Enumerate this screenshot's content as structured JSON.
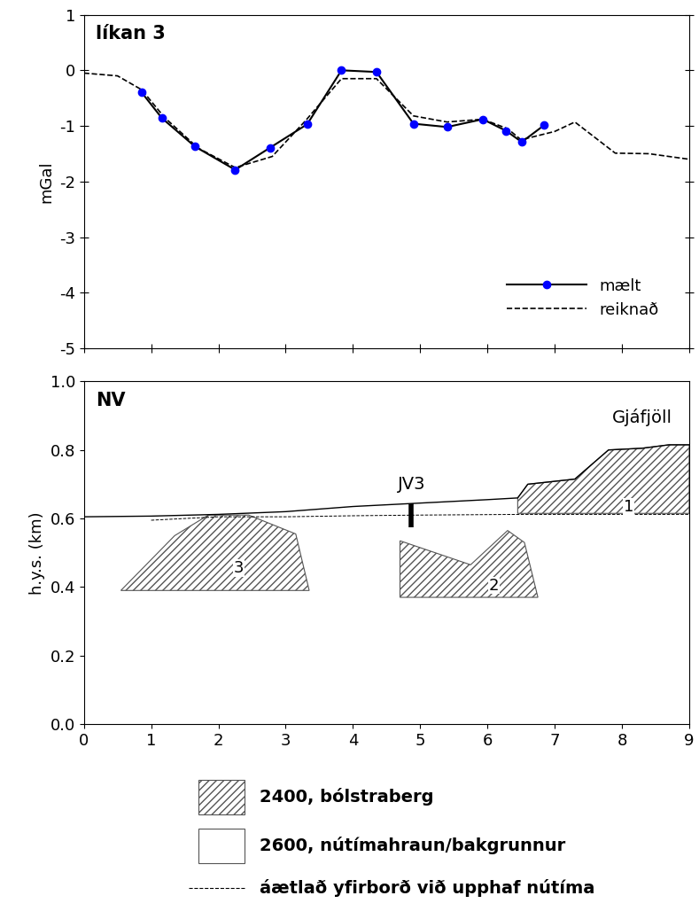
{
  "chart_data": [
    {
      "type": "line",
      "title": "líkan 3",
      "y_label": "mGal",
      "xlim": [
        0,
        9
      ],
      "xticks": [
        0,
        1,
        2,
        3,
        4,
        5,
        6,
        7,
        8,
        9
      ],
      "ylim": [
        -5,
        1
      ],
      "yticks": [
        -5,
        -4,
        -3,
        -2,
        -1,
        0,
        1
      ],
      "tick_labels": "y",
      "legend": "lower right",
      "series": [
        {
          "name": "mælt",
          "color": "#0000ff",
          "marker": "o",
          "line_style": "solid",
          "x": [
            0.86,
            1.16,
            1.65,
            2.25,
            2.77,
            3.32,
            3.83,
            4.35,
            4.9,
            5.4,
            5.93,
            6.28,
            6.51,
            6.84
          ],
          "values": [
            -0.4,
            -0.86,
            -1.37,
            -1.79,
            -1.39,
            -0.97,
            0.0,
            -0.03,
            -0.96,
            -1.02,
            -0.88,
            -1.09,
            -1.29,
            -0.99
          ]
        },
        {
          "name": "reiknað",
          "color": "#000000",
          "marker": "none",
          "line_style": "dashed",
          "x": [
            0,
            0.5,
            0.86,
            1.2,
            1.7,
            2.25,
            2.8,
            3.3,
            3.83,
            4.35,
            4.9,
            5.4,
            5.93,
            6.3,
            6.5,
            7.0,
            7.3,
            7.9,
            8.4,
            9.0
          ],
          "values": [
            -0.05,
            -0.1,
            -0.35,
            -0.85,
            -1.4,
            -1.75,
            -1.55,
            -0.9,
            -0.15,
            -0.15,
            -0.82,
            -0.93,
            -0.88,
            -1.05,
            -1.25,
            -1.1,
            -0.93,
            -1.49,
            -1.5,
            -1.6
          ]
        }
      ]
    },
    {
      "type": "cross_section",
      "title": "NV",
      "y_label": "h.y.s. (km)",
      "xlim": [
        0,
        9
      ],
      "xticks": [
        0,
        1,
        2,
        3,
        4,
        5,
        6,
        7,
        8,
        9
      ],
      "ylim": [
        0,
        1
      ],
      "yticks": [
        {
          "value": 0,
          "label": "0.0"
        },
        0.2,
        0.4,
        0.6,
        0.8,
        {
          "value": 1,
          "label": "1.0"
        }
      ],
      "units": [
        {
          "name": "2400, bólstraberg",
          "type": "hatched"
        },
        {
          "name": "2600, nútímahraun/bakgrunnur",
          "type": "plain"
        }
      ],
      "series": [
        {
          "type": "line",
          "color": "#000000",
          "line_style": "solid",
          "x": [
            0,
            1,
            2,
            3,
            4,
            5,
            6,
            6.45,
            6.6,
            7.3,
            7.8,
            8.3,
            8.7,
            9.0
          ],
          "values": [
            0.605,
            0.607,
            0.612,
            0.62,
            0.635,
            0.645,
            0.655,
            0.66,
            0.7,
            0.715,
            0.8,
            0.805,
            0.815,
            0.815
          ]
        },
        {
          "type": "line",
          "name": "áætlað yfirborð við upphaf nútíma",
          "color": "#000000",
          "line_style": "dashed",
          "x": [
            1,
            2,
            3,
            4,
            5,
            6.5,
            9.0
          ],
          "values": [
            0.595,
            0.605,
            0.605,
            0.608,
            0.61,
            0.612,
            0.612
          ]
        }
      ],
      "polygons": [
        {
          "label": "1",
          "unit": "2400, bólstraberg",
          "label_x": 8.1,
          "label_y": 0.635,
          "x": [
            6.45,
            6.45,
            6.6,
            7.3,
            7.8,
            8.3,
            8.7,
            9.0,
            9.0
          ],
          "y": [
            0.615,
            0.66,
            0.7,
            0.715,
            0.8,
            0.805,
            0.815,
            0.815,
            0.615
          ]
        },
        {
          "label": "2",
          "unit": "2400, bólstraberg",
          "label_x": 6.1,
          "label_y": 0.405,
          "x": [
            4.7,
            4.7,
            5.75,
            6.3,
            6.55,
            6.75
          ],
          "y": [
            0.37,
            0.535,
            0.465,
            0.565,
            0.53,
            0.37
          ]
        },
        {
          "label": "3",
          "unit": "2400, bólstraberg",
          "label_x": 2.3,
          "label_y": 0.455,
          "x": [
            0.55,
            1.35,
            1.85,
            2.45,
            3.15,
            3.35
          ],
          "y": [
            0.39,
            0.55,
            0.61,
            0.61,
            0.555,
            0.39
          ]
        }
      ],
      "annotations": [
        {
          "text": "Gjáfjöll",
          "x": 8.3,
          "y": 0.87
        }
      ],
      "well": {
        "label": "JV3",
        "x": 4.87,
        "top": 0.645,
        "bottom": 0.575
      }
    }
  ]
}
